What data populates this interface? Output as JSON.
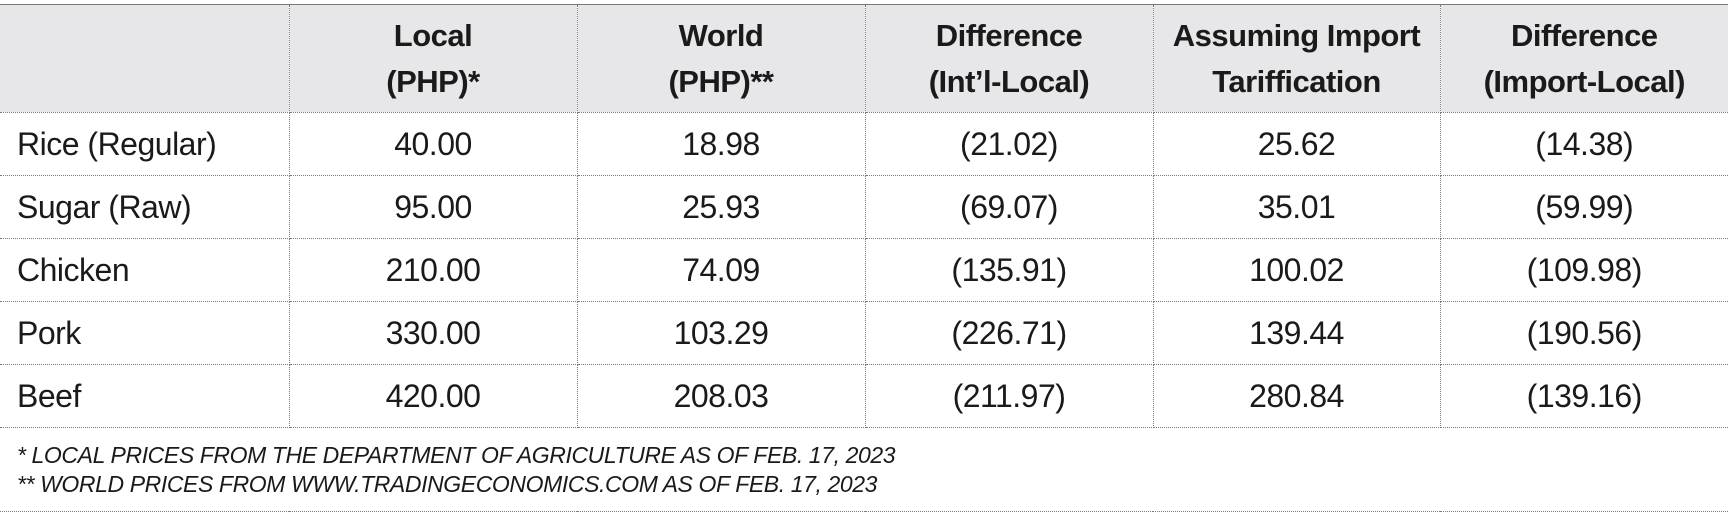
{
  "table": {
    "headers": [
      {
        "line1": "",
        "line2": ""
      },
      {
        "line1": "Local",
        "line2": "(PHP)*"
      },
      {
        "line1": "World",
        "line2": "(PHP)**"
      },
      {
        "line1": "Difference",
        "line2": "(Int’l-Local)"
      },
      {
        "line1": "Assuming Import",
        "line2": "Tariffication"
      },
      {
        "line1": "Difference",
        "line2": "(Import-Local)"
      }
    ],
    "rows": [
      [
        "Rice (Regular)",
        "40.00",
        "18.98",
        "(21.02)",
        "25.62",
        "(14.38)"
      ],
      [
        "Sugar (Raw)",
        "95.00",
        "25.93",
        "(69.07)",
        "35.01",
        "(59.99)"
      ],
      [
        "Chicken",
        "210.00",
        "74.09",
        "(135.91)",
        "100.02",
        "(109.98)"
      ],
      [
        "Pork",
        "330.00",
        "103.29",
        "(226.71)",
        "139.44",
        "(190.56)"
      ],
      [
        "Beef",
        "420.00",
        "208.03",
        "(211.97)",
        "280.84",
        "(139.16)"
      ]
    ],
    "notes": [
      "* LOCAL PRICES FROM THE DEPARTMENT OF AGRICULTURE AS OF FEB. 17, 2023",
      "** WORLD PRICES FROM WWW.TRADINGECONOMICS.COM AS OF FEB. 17, 2023"
    ]
  },
  "colors": {
    "header_background": "#e7e7e9",
    "text": "#1a1a1a",
    "grid_line": "#7a7a7a"
  }
}
